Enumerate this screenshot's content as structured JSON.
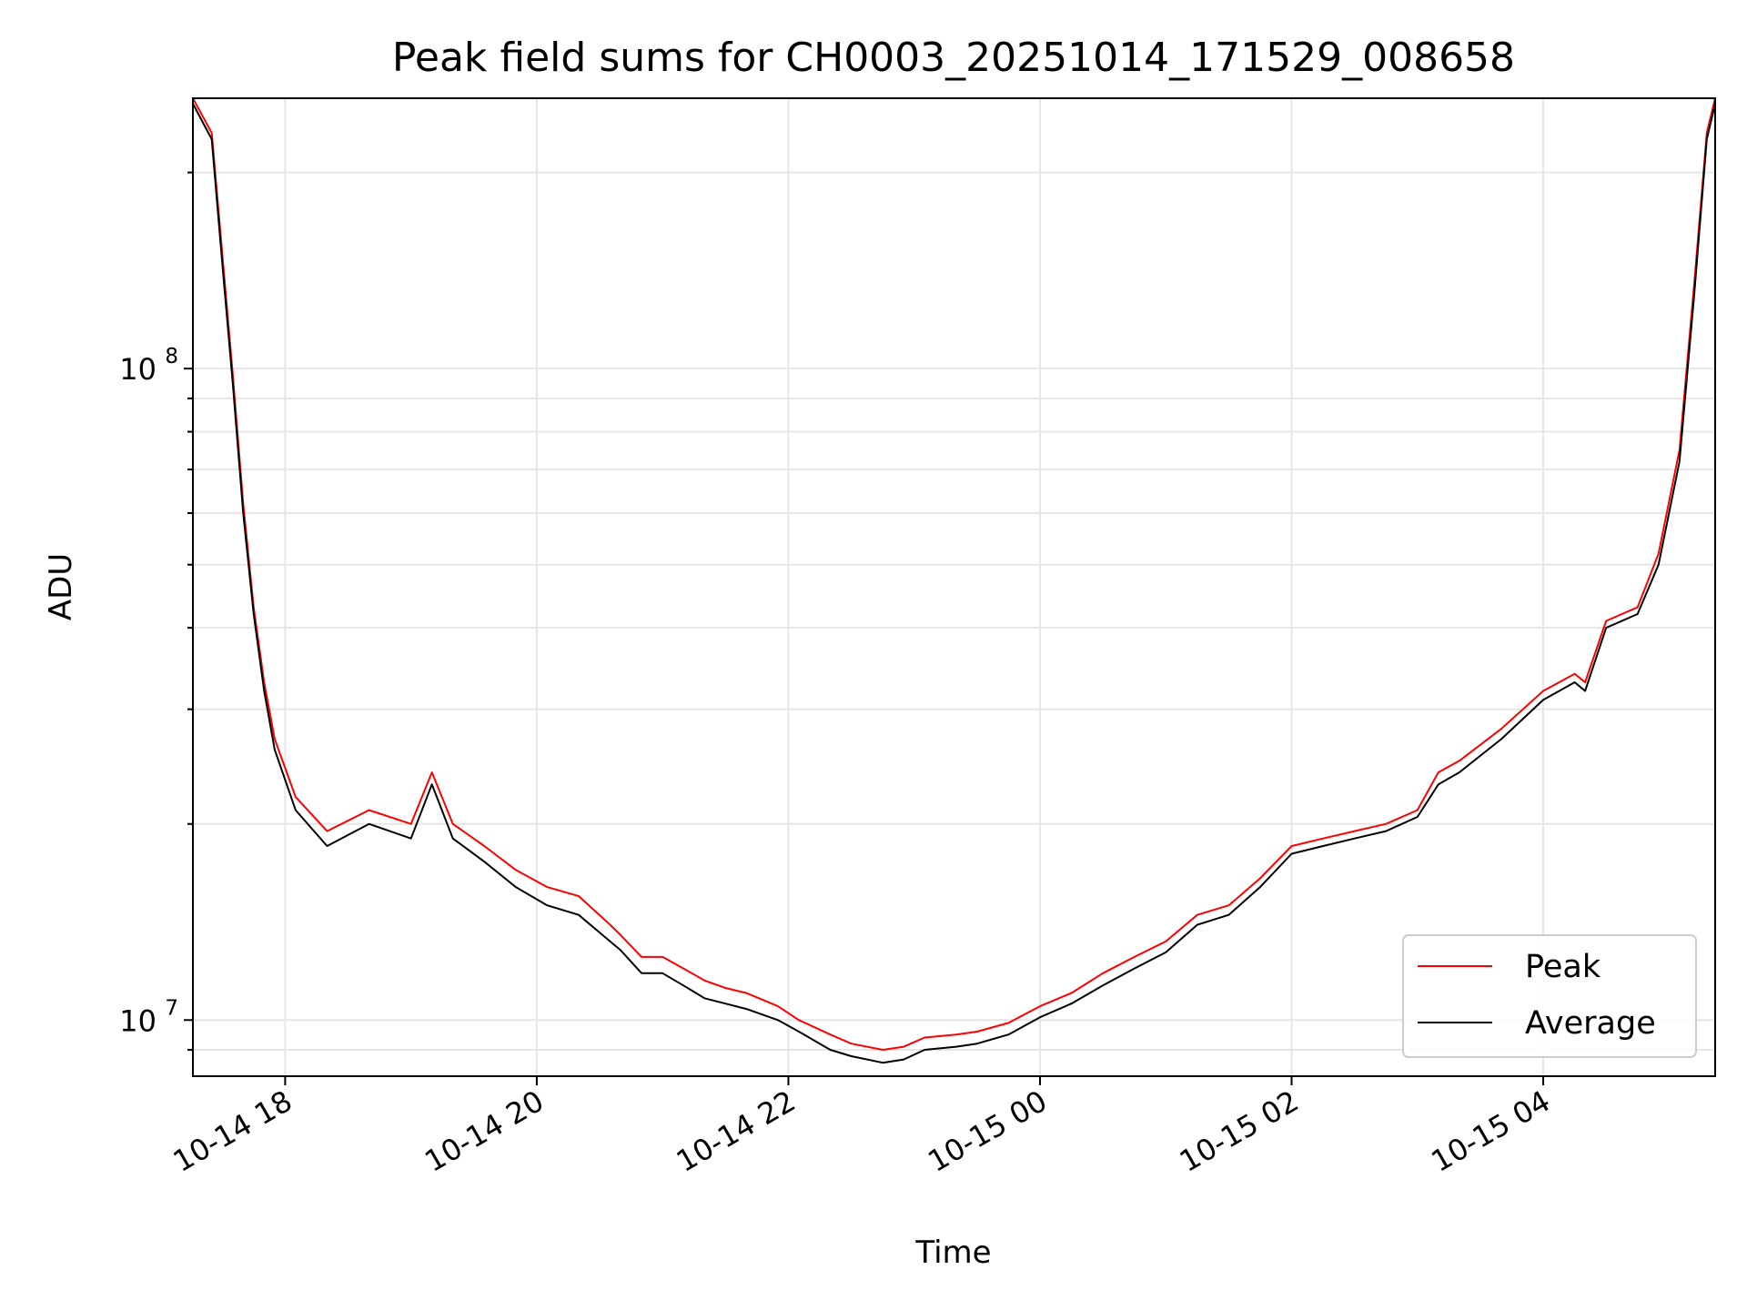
{
  "chart_data": {
    "type": "line",
    "title": "Peak field sums for CH0003_20251014_171529_008658",
    "xlabel": "Time",
    "ylabel": "ADU",
    "x_scale": "time",
    "y_scale": "log",
    "xlim": [
      "2025-10-14 17:16",
      "2025-10-15 05:22"
    ],
    "ylim": [
      8200000,
      260000000
    ],
    "grid": true,
    "legend_position": "lower-right",
    "x_ticks": [
      {
        "value": "2025-10-14 18:00",
        "label": "10-14 18"
      },
      {
        "value": "2025-10-14 20:00",
        "label": "10-14 20"
      },
      {
        "value": "2025-10-14 22:00",
        "label": "10-14 22"
      },
      {
        "value": "2025-10-15 00:00",
        "label": "10-15 00"
      },
      {
        "value": "2025-10-15 02:00",
        "label": "10-15 02"
      },
      {
        "value": "2025-10-15 04:00",
        "label": "10-15 04"
      }
    ],
    "y_ticks": [
      {
        "value": 10000000,
        "base": "10",
        "exp": "7"
      },
      {
        "value": 100000000,
        "base": "10",
        "exp": "8"
      }
    ],
    "series": [
      {
        "name": "Peak",
        "color": "#ff0000",
        "x": [
          "2025-10-14 17:16",
          "2025-10-14 17:25",
          "2025-10-14 17:30",
          "2025-10-14 17:35",
          "2025-10-14 17:40",
          "2025-10-14 17:45",
          "2025-10-14 17:50",
          "2025-10-14 17:55",
          "2025-10-14 18:05",
          "2025-10-14 18:20",
          "2025-10-14 18:40",
          "2025-10-14 19:00",
          "2025-10-14 19:10",
          "2025-10-14 19:20",
          "2025-10-14 19:35",
          "2025-10-14 19:50",
          "2025-10-14 20:05",
          "2025-10-14 20:20",
          "2025-10-14 20:35",
          "2025-10-14 20:40",
          "2025-10-14 20:50",
          "2025-10-14 21:00",
          "2025-10-14 21:10",
          "2025-10-14 21:20",
          "2025-10-14 21:30",
          "2025-10-14 21:40",
          "2025-10-14 21:55",
          "2025-10-14 22:05",
          "2025-10-14 22:20",
          "2025-10-14 22:30",
          "2025-10-14 22:45",
          "2025-10-14 22:55",
          "2025-10-14 23:05",
          "2025-10-14 23:20",
          "2025-10-14 23:30",
          "2025-10-14 23:45",
          "2025-10-15 00:00",
          "2025-10-15 00:15",
          "2025-10-15 00:30",
          "2025-10-15 00:45",
          "2025-10-15 01:00",
          "2025-10-15 01:15",
          "2025-10-15 01:30",
          "2025-10-15 01:45",
          "2025-10-15 02:00",
          "2025-10-15 02:15",
          "2025-10-15 02:30",
          "2025-10-15 02:45",
          "2025-10-15 03:00",
          "2025-10-15 03:10",
          "2025-10-15 03:20",
          "2025-10-15 03:40",
          "2025-10-15 04:00",
          "2025-10-15 04:15",
          "2025-10-15 04:20",
          "2025-10-15 04:30",
          "2025-10-15 04:45",
          "2025-10-15 04:55",
          "2025-10-15 05:05",
          "2025-10-15 05:12",
          "2025-10-15 05:18",
          "2025-10-15 05:22"
        ],
        "y": [
          260000000,
          230000000,
          150000000,
          98000000,
          62000000,
          43000000,
          33000000,
          27000000,
          22000000,
          19500000,
          21000000,
          20000000,
          24000000,
          20000000,
          18500000,
          17000000,
          16000000,
          15500000,
          14000000,
          13500000,
          12500000,
          12500000,
          12000000,
          11500000,
          11200000,
          11000000,
          10500000,
          10000000,
          9500000,
          9200000,
          9000000,
          9100000,
          9400000,
          9500000,
          9600000,
          9900000,
          10500000,
          11000000,
          11800000,
          12500000,
          13200000,
          14500000,
          15000000,
          16500000,
          18500000,
          19000000,
          19500000,
          20000000,
          21000000,
          24000000,
          25000000,
          28000000,
          32000000,
          34000000,
          33000000,
          41000000,
          43000000,
          52000000,
          75000000,
          135000000,
          230000000,
          260000000
        ]
      },
      {
        "name": "Average",
        "color": "#000000",
        "x": [
          "2025-10-14 17:16",
          "2025-10-14 17:25",
          "2025-10-14 17:30",
          "2025-10-14 17:35",
          "2025-10-14 17:40",
          "2025-10-14 17:45",
          "2025-10-14 17:50",
          "2025-10-14 17:55",
          "2025-10-14 18:05",
          "2025-10-14 18:20",
          "2025-10-14 18:40",
          "2025-10-14 19:00",
          "2025-10-14 19:10",
          "2025-10-14 19:20",
          "2025-10-14 19:35",
          "2025-10-14 19:50",
          "2025-10-14 20:05",
          "2025-10-14 20:20",
          "2025-10-14 20:35",
          "2025-10-14 20:40",
          "2025-10-14 20:50",
          "2025-10-14 21:00",
          "2025-10-14 21:10",
          "2025-10-14 21:20",
          "2025-10-14 21:30",
          "2025-10-14 21:40",
          "2025-10-14 21:55",
          "2025-10-14 22:05",
          "2025-10-14 22:20",
          "2025-10-14 22:30",
          "2025-10-14 22:45",
          "2025-10-14 22:55",
          "2025-10-14 23:05",
          "2025-10-14 23:20",
          "2025-10-14 23:30",
          "2025-10-14 23:45",
          "2025-10-15 00:00",
          "2025-10-15 00:15",
          "2025-10-15 00:30",
          "2025-10-15 00:45",
          "2025-10-15 01:00",
          "2025-10-15 01:15",
          "2025-10-15 01:30",
          "2025-10-15 01:45",
          "2025-10-15 02:00",
          "2025-10-15 02:15",
          "2025-10-15 02:30",
          "2025-10-15 02:45",
          "2025-10-15 03:00",
          "2025-10-15 03:10",
          "2025-10-15 03:20",
          "2025-10-15 03:40",
          "2025-10-15 04:00",
          "2025-10-15 04:15",
          "2025-10-15 04:20",
          "2025-10-15 04:30",
          "2025-10-15 04:45",
          "2025-10-15 04:55",
          "2025-10-15 05:05",
          "2025-10-15 05:12",
          "2025-10-15 05:18",
          "2025-10-15 05:22"
        ],
        "y": [
          255000000,
          225000000,
          145000000,
          95000000,
          60000000,
          42000000,
          32000000,
          26000000,
          21000000,
          18500000,
          20000000,
          19000000,
          23000000,
          19000000,
          17500000,
          16000000,
          15000000,
          14500000,
          13200000,
          12800000,
          11800000,
          11800000,
          11300000,
          10800000,
          10600000,
          10400000,
          10000000,
          9600000,
          9000000,
          8800000,
          8600000,
          8700000,
          9000000,
          9100000,
          9200000,
          9500000,
          10100000,
          10600000,
          11300000,
          12000000,
          12700000,
          14000000,
          14500000,
          16000000,
          18000000,
          18500000,
          19000000,
          19500000,
          20500000,
          23000000,
          24000000,
          27000000,
          31000000,
          33000000,
          32000000,
          40000000,
          42000000,
          50000000,
          72000000,
          130000000,
          225000000,
          255000000
        ]
      }
    ]
  }
}
